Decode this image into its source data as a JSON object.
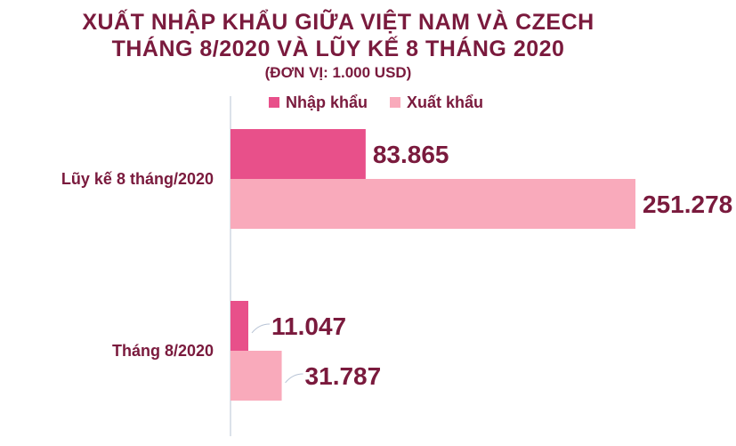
{
  "chart_data": {
    "type": "bar",
    "orientation": "horizontal",
    "title_lines": [
      "XUẤT NHẬP KHẨU GIỮA VIỆT NAM VÀ CZECH",
      "THÁNG 8/2020 VÀ LŨY KẾ 8 THÁNG 2020"
    ],
    "subtitle": "(ĐƠN VỊ: 1.000 USD)",
    "categories": [
      "Lũy kế 8 tháng/2020",
      "Tháng 8/2020"
    ],
    "series": [
      {
        "name": "Nhập khẩu",
        "color": "#e8508a",
        "values": [
          83865,
          11047
        ],
        "labels": [
          "83.865",
          "11.047"
        ]
      },
      {
        "name": "Xuất khẩu",
        "color": "#f9aabb",
        "values": [
          251278,
          31787
        ],
        "labels": [
          "251.278",
          "31.787"
        ]
      }
    ],
    "xlim": [
      0,
      251278
    ],
    "legend_position": "top",
    "grid": false
  }
}
